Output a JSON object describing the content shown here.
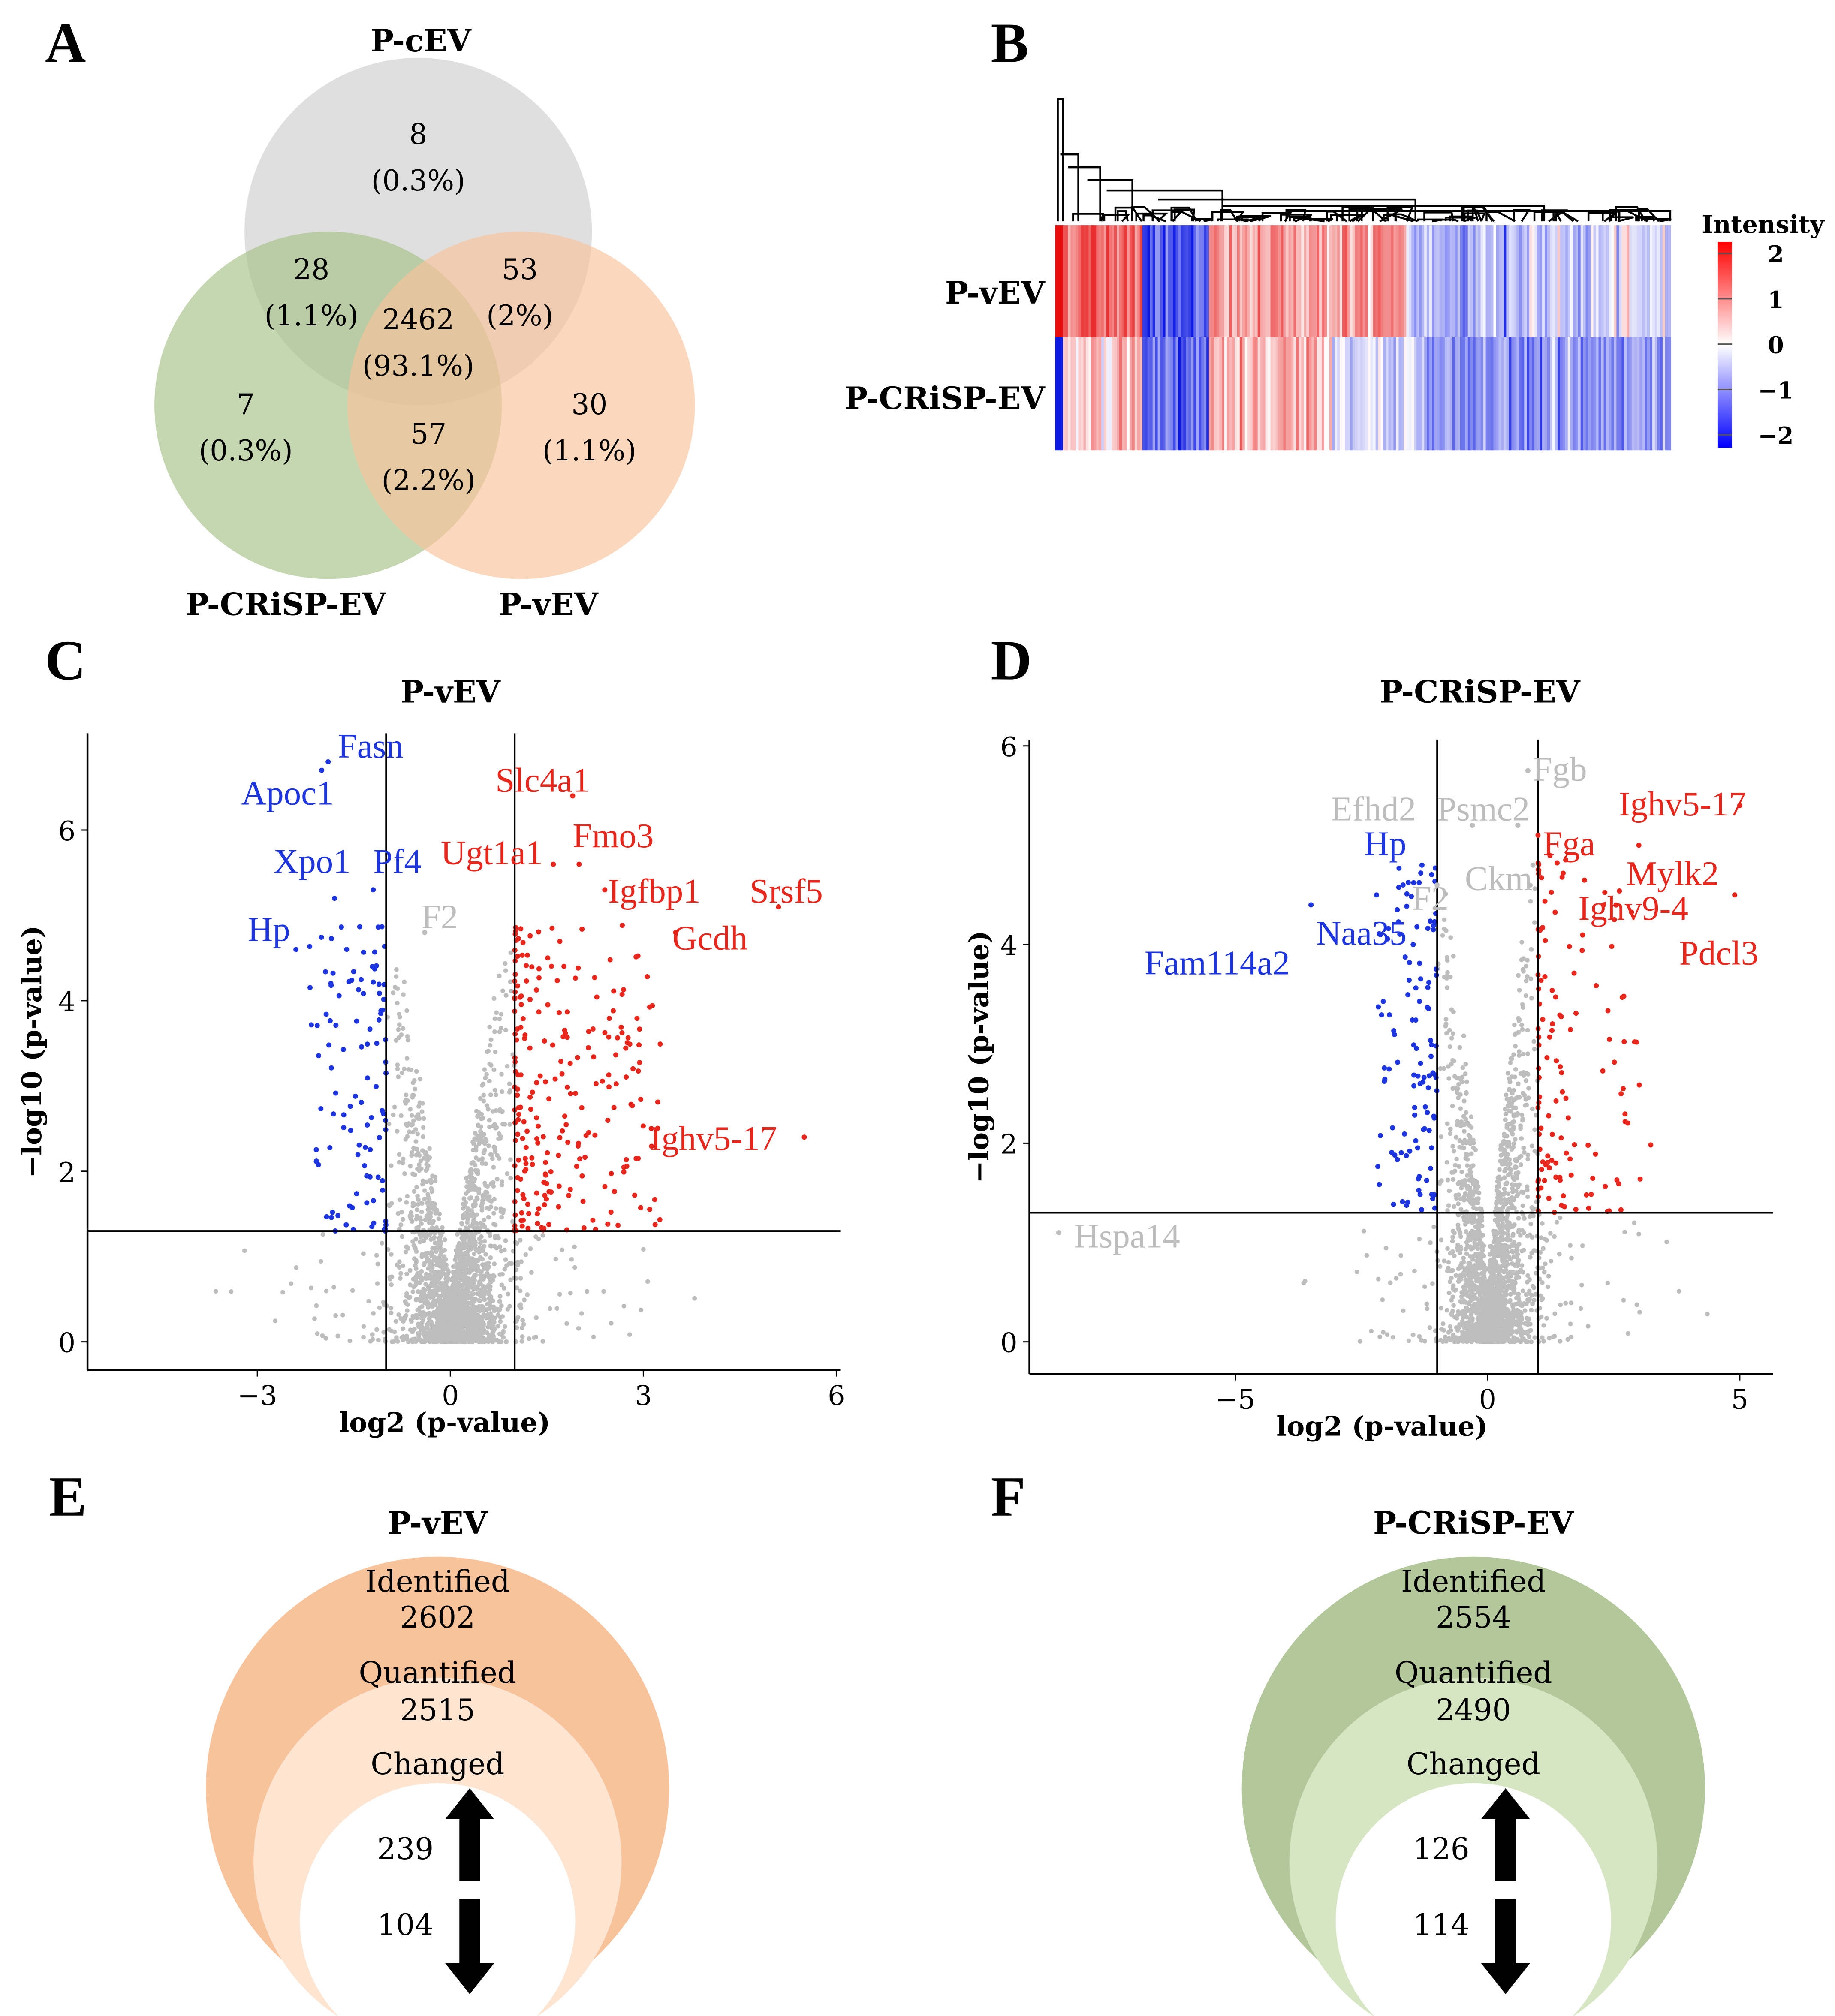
{
  "panels": {
    "A": "A",
    "B": "B",
    "C": "C",
    "D": "D",
    "E": "E",
    "F": "F"
  },
  "venn": {
    "sets": [
      "P-cEV",
      "P-CRiSP-EV",
      "P-vEV"
    ],
    "colors": {
      "P-cEV": "#d4d4d4",
      "P-CRiSP-EV": "#a6c287",
      "P-vEV": "#f9c399"
    },
    "regions": {
      "cEV_only": {
        "n": "8",
        "pct": "(0.3%)"
      },
      "cEV_crisp": {
        "n": "28",
        "pct": "(1.1%)"
      },
      "cEV_vev": {
        "n": "53",
        "pct": "(2%)"
      },
      "all": {
        "n": "2462",
        "pct": "(93.1%)"
      },
      "crisp_only": {
        "n": "7",
        "pct": "(0.3%)"
      },
      "crisp_vev": {
        "n": "57",
        "pct": "(2.2%)"
      },
      "vev_only": {
        "n": "30",
        "pct": "(1.1%)"
      }
    }
  },
  "heatmap": {
    "rows": [
      "P-vEV",
      "P-CRiSP-EV"
    ],
    "legend_title": "Intensity",
    "legend_ticks": [
      "2",
      "1",
      "0",
      "−1",
      "−2"
    ],
    "range": [
      -2,
      2
    ]
  },
  "chart_data": [
    {
      "type": "scatter",
      "title": "P-vEV",
      "xlabel": "log2 (p-value)",
      "ylabel": "−log10 (p-value)",
      "xlim": [
        -5.5,
        6
      ],
      "ylim": [
        -0.3,
        7.2
      ],
      "xticks": [
        "−3",
        "0",
        "3",
        "6"
      ],
      "xtick_values": [
        -3,
        0,
        3,
        6
      ],
      "yticks": [
        "0",
        "2",
        "4",
        "6"
      ],
      "ytick_values": [
        0,
        2,
        4,
        6
      ],
      "fc_threshold": 1,
      "p_threshold": 1.3,
      "n_up": 239,
      "n_down": 104,
      "n_total": 2515,
      "labels": [
        {
          "text": "Fasn",
          "x": -1.9,
          "y": 6.8,
          "tx": -1.75,
          "ty": 6.85,
          "color": "blue"
        },
        {
          "text": "Apoc1",
          "x": -2.0,
          "y": 6.7,
          "tx": -3.25,
          "ty": 6.3,
          "color": "blue"
        },
        {
          "text": "Xpo1",
          "x": -1.8,
          "y": 5.2,
          "tx": -2.75,
          "ty": 5.5,
          "color": "blue"
        },
        {
          "text": "Pf4",
          "x": -1.2,
          "y": 5.3,
          "tx": -1.2,
          "ty": 5.5,
          "color": "blue"
        },
        {
          "text": "Hp",
          "x": -2.4,
          "y": 4.6,
          "tx": -3.15,
          "ty": 4.7,
          "color": "blue"
        },
        {
          "text": "F2",
          "x": -0.4,
          "y": 4.8,
          "tx": -0.45,
          "ty": 4.85,
          "color": "gray"
        },
        {
          "text": "Slc4a1",
          "x": 1.9,
          "y": 6.4,
          "tx": 0.7,
          "ty": 6.45,
          "color": "red"
        },
        {
          "text": "Ugt1a1",
          "x": 1.6,
          "y": 5.6,
          "tx": -0.15,
          "ty": 5.6,
          "color": "red"
        },
        {
          "text": "Fmo3",
          "x": 2.0,
          "y": 5.6,
          "tx": 1.9,
          "ty": 5.8,
          "color": "red"
        },
        {
          "text": "Igfbp1",
          "x": 2.4,
          "y": 5.3,
          "tx": 2.45,
          "ty": 5.15,
          "color": "red"
        },
        {
          "text": "Srsf5",
          "x": 5.1,
          "y": 5.1,
          "tx": 4.65,
          "ty": 5.15,
          "color": "red"
        },
        {
          "text": "Gcdh",
          "x": 3.5,
          "y": 4.8,
          "tx": 3.45,
          "ty": 4.6,
          "color": "red"
        },
        {
          "text": "Ighv5-17",
          "x": 5.5,
          "y": 2.4,
          "tx": 3.1,
          "ty": 2.25,
          "color": "red"
        }
      ]
    },
    {
      "type": "scatter",
      "title": "P-CRiSP-EV",
      "xlabel": "log2 (p-value)",
      "ylabel": "−log10 (p-value)",
      "xlim": [
        -9,
        5.7
      ],
      "ylim": [
        -0.3,
        6.1
      ],
      "xticks": [
        "−5",
        "0",
        "5"
      ],
      "xtick_values": [
        -5,
        0,
        5
      ],
      "yticks": [
        "0",
        "2",
        "4",
        "6"
      ],
      "ytick_values": [
        0,
        2,
        4,
        6
      ],
      "fc_threshold": 1,
      "p_threshold": 1.3,
      "n_up": 126,
      "n_down": 114,
      "n_total": 2490,
      "labels": [
        {
          "text": "Fgb",
          "x": 0.8,
          "y": 5.75,
          "tx": 0.9,
          "ty": 5.65,
          "color": "gray"
        },
        {
          "text": "Efhd2",
          "x": -0.3,
          "y": 5.2,
          "tx": -3.1,
          "ty": 5.25,
          "color": "gray"
        },
        {
          "text": "Psmc2",
          "x": 0.6,
          "y": 5.2,
          "tx": -1.0,
          "ty": 5.25,
          "color": "gray"
        },
        {
          "text": "Fga",
          "x": 1.0,
          "y": 5.1,
          "tx": 1.1,
          "ty": 4.9,
          "color": "red"
        },
        {
          "text": "Ighv5-17",
          "x": 5.0,
          "y": 5.4,
          "tx": 2.6,
          "ty": 5.3,
          "color": "red"
        },
        {
          "text": "Hp",
          "x": -1.3,
          "y": 4.8,
          "tx": -2.45,
          "ty": 4.9,
          "color": "blue"
        },
        {
          "text": "Ckm",
          "x": 0.9,
          "y": 4.8,
          "tx": -0.45,
          "ty": 4.55,
          "color": "gray"
        },
        {
          "text": "Mylk2",
          "x": 3.0,
          "y": 5.0,
          "tx": 2.75,
          "ty": 4.6,
          "color": "red"
        },
        {
          "text": "F2",
          "x": -1.0,
          "y": 4.6,
          "tx": -1.5,
          "ty": 4.35,
          "color": "gray"
        },
        {
          "text": "Ighv9-4",
          "x": 2.3,
          "y": 4.4,
          "tx": 1.8,
          "ty": 4.25,
          "color": "red"
        },
        {
          "text": "Naa35",
          "x": -2.2,
          "y": 4.5,
          "tx": -3.4,
          "ty": 4.0,
          "color": "blue"
        },
        {
          "text": "Pdcl3",
          "x": 4.9,
          "y": 4.5,
          "tx": 3.8,
          "ty": 3.8,
          "color": "red"
        },
        {
          "text": "Fam114a2",
          "x": -3.5,
          "y": 4.4,
          "tx": -6.8,
          "ty": 3.7,
          "color": "blue"
        },
        {
          "text": "Hspa14",
          "x": -8.5,
          "y": 1.1,
          "tx": -8.2,
          "ty": 0.95,
          "color": "gray"
        }
      ]
    }
  ],
  "summary": [
    {
      "title": "P-vEV",
      "identified_label": "Identified",
      "identified": "2602",
      "quantified_label": "Quantified",
      "quantified": "2515",
      "changed_label": "Changed",
      "up": "239",
      "down": "104",
      "outer": "#f8c39a",
      "middle": "#fde5d2"
    },
    {
      "title": "P-CRiSP-EV",
      "identified_label": "Identified",
      "identified": "2554",
      "quantified_label": "Quantified",
      "quantified": "2490",
      "changed_label": "Changed",
      "up": "126",
      "down": "114",
      "outer": "#b3c89a",
      "middle": "#d6e6c3"
    }
  ],
  "colors": {
    "up": "#e8261b",
    "down": "#1d35e0",
    "ns": "#bdbdbd",
    "hm_hi": "#e8261b",
    "hm_lo": "#1d35e0"
  }
}
